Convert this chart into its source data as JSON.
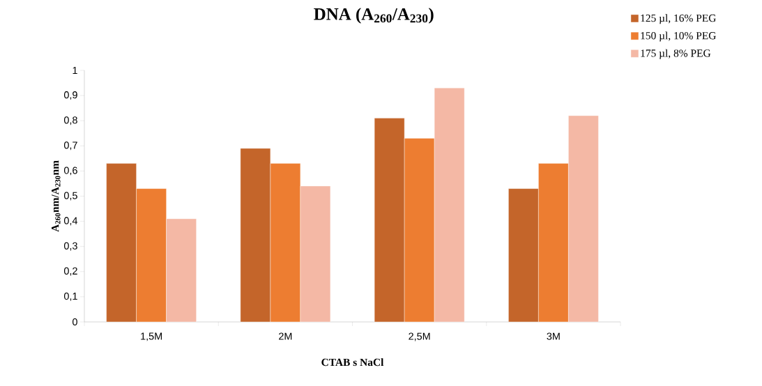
{
  "chart_data": {
    "type": "bar",
    "title": "DNA (A$_{260}$/A$_{230}$)",
    "xlabel": "CTAB s NaCl",
    "ylabel": "A$_{260}$nm/A$_{230}$nm",
    "categories": [
      "1,5M",
      "2M",
      "2,5M",
      "3M"
    ],
    "series": [
      {
        "name": "125 µl, 16% PEG",
        "color": "#c4652a",
        "values": [
          0.63,
          0.69,
          0.81,
          0.53
        ]
      },
      {
        "name": "150 µl, 10% PEG",
        "color": "#ed7d31",
        "values": [
          0.53,
          0.63,
          0.73,
          0.63
        ]
      },
      {
        "name": "175 µl, 8% PEG",
        "color": "#f4b8a5",
        "values": [
          0.41,
          0.54,
          0.93,
          0.82
        ]
      }
    ],
    "ylim": [
      0,
      1
    ],
    "yticks": [
      0,
      {
        "value": 0.1,
        "label": "0,1"
      },
      {
        "value": 0.2,
        "label": "0,2"
      },
      {
        "value": 0.3,
        "label": "0,3"
      },
      {
        "value": 0.4,
        "label": "0,4"
      },
      {
        "value": 0.5,
        "label": "0,5"
      },
      {
        "value": 0.6,
        "label": "0,6"
      },
      {
        "value": 0.7,
        "label": "0,7"
      },
      {
        "value": 0.8,
        "label": "0,8"
      },
      {
        "value": 0.9,
        "label": "0,9"
      },
      1
    ],
    "legend": "top right",
    "grid": false
  }
}
